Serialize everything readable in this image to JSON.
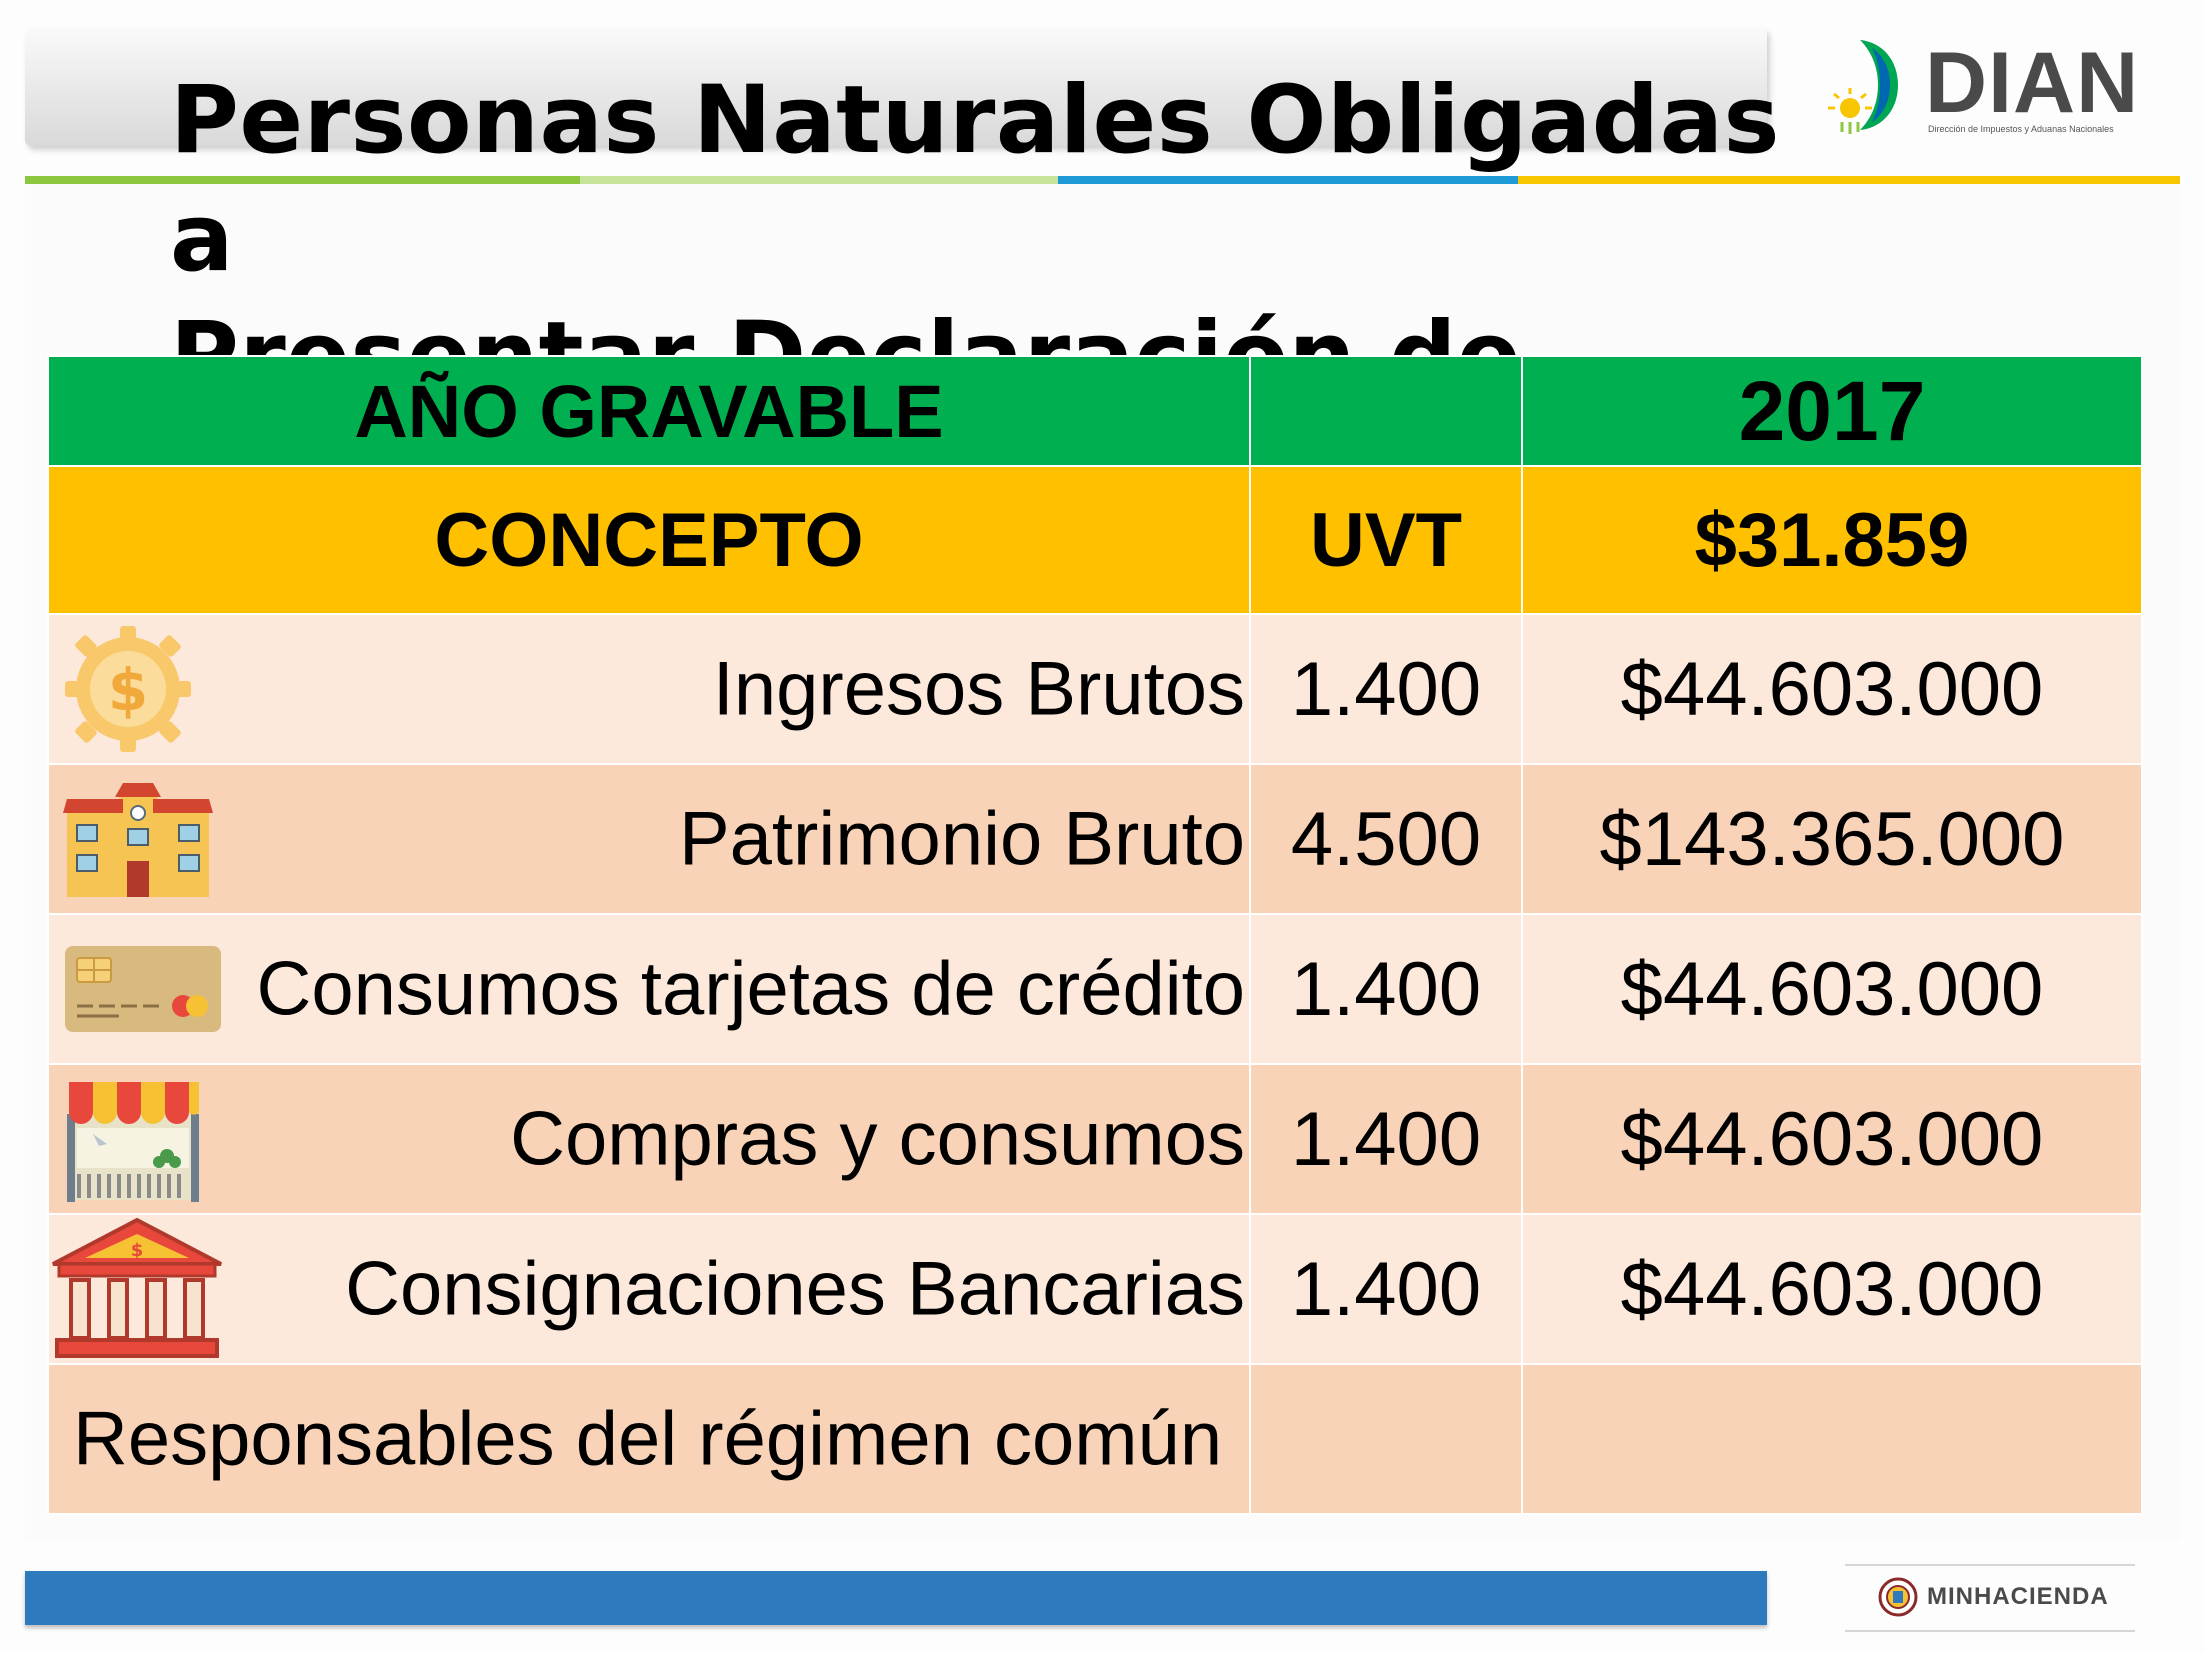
{
  "header": {
    "title_line1": "Personas Naturales Obligadas a",
    "title_line2": "Presentar Declaración de Renta"
  },
  "logo": {
    "name": "DIAN",
    "subtitle": "Dirección de Impuestos y Aduanas Nacionales"
  },
  "table": {
    "header_row": {
      "label": "AÑO GRAVABLE",
      "middle": "",
      "year": "2017"
    },
    "subheader_row": {
      "concept": "CONCEPTO",
      "uvt": "UVT",
      "uvt_value": "$31.859"
    },
    "rows": [
      {
        "label": "Ingresos Brutos",
        "uvt": "1.400",
        "value": "$44.603.000",
        "icon": "dollar-gear-icon"
      },
      {
        "label": "Patrimonio Bruto",
        "uvt": "4.500",
        "value": "$143.365.000",
        "icon": "building-icon"
      },
      {
        "label": "Consumos tarjetas de crédito",
        "uvt": "1.400",
        "value": "$44.603.000",
        "icon": "credit-card-icon"
      },
      {
        "label": "Compras y consumos",
        "uvt": "1.400",
        "value": "$44.603.000",
        "icon": "shop-icon"
      },
      {
        "label": "Consignaciones Bancarias",
        "uvt": "1.400",
        "value": "$44.603.000",
        "icon": "bank-icon"
      },
      {
        "label": "Responsables del régimen común",
        "uvt": "",
        "value": ""
      }
    ]
  },
  "footer": {
    "brand": "MINHACIENDA"
  },
  "colors": {
    "header_green": "#00b050",
    "subheader_yellow": "#ffc000",
    "row_light": "#fce9dc",
    "row_dark": "#f9d3b7",
    "footer_blue": "#2f79bf"
  }
}
